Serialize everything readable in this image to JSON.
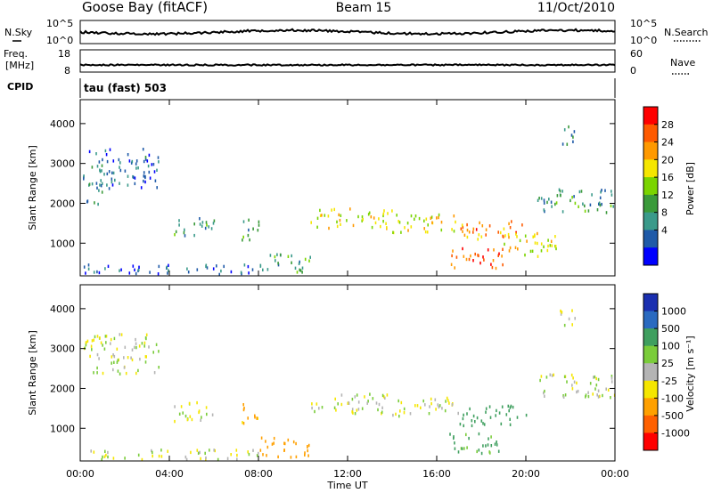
{
  "header": {
    "station": "Goose Bay (fitACF)",
    "beam": "Beam 15",
    "date": "11/Oct/2010"
  },
  "noise_panel": {
    "left_label": "N.Sky",
    "right_label": "N.Search",
    "left_ticks": [
      "10^5",
      "10^0"
    ],
    "right_ticks": [
      "10^5",
      "10^0"
    ]
  },
  "freq_panel": {
    "left_label_line1": "Freq.",
    "left_label_line2": "[MHz]",
    "right_label": "Nave",
    "left_ticks": [
      "18",
      "8"
    ],
    "right_ticks": [
      "60",
      "0"
    ]
  },
  "cpid": {
    "label": "CPID",
    "text": "tau (fast) 503"
  },
  "x_axis": {
    "title": "Time UT",
    "ticks": [
      "00:00",
      "04:00",
      "08:00",
      "12:00",
      "16:00",
      "20:00",
      "00:00"
    ]
  },
  "power_colorbar": {
    "title": "Power [dB]",
    "labels": [
      "28",
      "24",
      "20",
      "16",
      "12",
      "8",
      "4"
    ],
    "colors": [
      "#ff0000",
      "#ff5a00",
      "#ff9900",
      "#f5e600",
      "#7ad400",
      "#3a9a3a",
      "#3a9a8a",
      "#1f5aa8",
      "#0000ff"
    ]
  },
  "velocity_colorbar": {
    "title": "Velocity [m s⁻¹]",
    "labels": [
      "1000",
      "500",
      "100",
      "25",
      "-25",
      "-100",
      "-500",
      "-1000"
    ],
    "colors": [
      "#1a2fb0",
      "#2a6ac0",
      "#3f9f5f",
      "#7acc3a",
      "#b4b4b4",
      "#f5e600",
      "#ffa000",
      "#ff6000",
      "#ff0000"
    ]
  },
  "chart_data": {
    "type": "heatmap",
    "title": "Goose Bay (fitACF)  Beam 15  11/Oct/2010",
    "xlabel": "Time UT",
    "ylabel": "Slant Range [km]",
    "xlim": [
      0,
      24
    ],
    "ylim": [
      180,
      4600
    ],
    "yticks": [
      1000,
      2000,
      3000,
      4000
    ],
    "panels": [
      {
        "name": "Power",
        "units": "dB",
        "color_range": [
          0,
          32
        ],
        "scatter_regions": [
          {
            "t_start": 0.1,
            "t_end": 3.5,
            "range_start": 2400,
            "range_end": 3400,
            "value": 6
          },
          {
            "t_start": 0.1,
            "t_end": 1.0,
            "range_start": 2000,
            "range_end": 2600,
            "value": 8
          },
          {
            "t_start": 4.2,
            "t_end": 6.0,
            "range_start": 1200,
            "range_end": 1700,
            "value": 10
          },
          {
            "t_start": 7.2,
            "t_end": 8.0,
            "range_start": 1100,
            "range_end": 1700,
            "value": 10
          },
          {
            "t_start": 0.1,
            "t_end": 8.0,
            "range_start": 250,
            "range_end": 500,
            "value": 6
          },
          {
            "t_start": 8.0,
            "t_end": 10.3,
            "range_start": 300,
            "range_end": 800,
            "value": 11
          },
          {
            "t_start": 10.3,
            "t_end": 14.0,
            "range_start": 1400,
            "range_end": 1900,
            "value": 18
          },
          {
            "t_start": 14.0,
            "t_end": 17.0,
            "range_start": 1300,
            "range_end": 1800,
            "value": 20
          },
          {
            "t_start": 17.0,
            "t_end": 20.0,
            "range_start": 1100,
            "range_end": 1600,
            "value": 24
          },
          {
            "t_start": 16.5,
            "t_end": 19.0,
            "range_start": 400,
            "range_end": 900,
            "value": 26
          },
          {
            "t_start": 19.0,
            "t_end": 21.5,
            "range_start": 700,
            "range_end": 1300,
            "value": 20
          },
          {
            "t_start": 20.5,
            "t_end": 24.0,
            "range_start": 1800,
            "range_end": 2400,
            "value": 10
          },
          {
            "t_start": 21.5,
            "t_end": 22.2,
            "range_start": 3500,
            "range_end": 4000,
            "value": 8
          }
        ]
      },
      {
        "name": "Velocity",
        "units": "m s^-1",
        "color_range": [
          -1000,
          1000
        ],
        "scatter_regions": [
          {
            "t_start": 0.1,
            "t_end": 3.5,
            "range_start": 2400,
            "range_end": 3400,
            "value": 0
          },
          {
            "t_start": 4.2,
            "t_end": 6.0,
            "range_start": 1200,
            "range_end": 1700,
            "value": 0
          },
          {
            "t_start": 7.2,
            "t_end": 8.0,
            "range_start": 1100,
            "range_end": 1700,
            "value": -150
          },
          {
            "t_start": 0.1,
            "t_end": 8.0,
            "range_start": 250,
            "range_end": 500,
            "value": 0
          },
          {
            "t_start": 8.0,
            "t_end": 10.3,
            "range_start": 300,
            "range_end": 800,
            "value": -300
          },
          {
            "t_start": 10.3,
            "t_end": 14.0,
            "range_start": 1400,
            "range_end": 1900,
            "value": 0
          },
          {
            "t_start": 14.0,
            "t_end": 17.0,
            "range_start": 1300,
            "range_end": 1800,
            "value": 0
          },
          {
            "t_start": 16.5,
            "t_end": 19.0,
            "range_start": 400,
            "range_end": 900,
            "value": 150
          },
          {
            "t_start": 17.0,
            "t_end": 20.0,
            "range_start": 1100,
            "range_end": 1600,
            "value": 400
          },
          {
            "t_start": 20.5,
            "t_end": 24.0,
            "range_start": 1800,
            "range_end": 2400,
            "value": 0
          },
          {
            "t_start": 21.5,
            "t_end": 22.2,
            "range_start": 3500,
            "range_end": 4000,
            "value": 0
          }
        ]
      }
    ]
  }
}
